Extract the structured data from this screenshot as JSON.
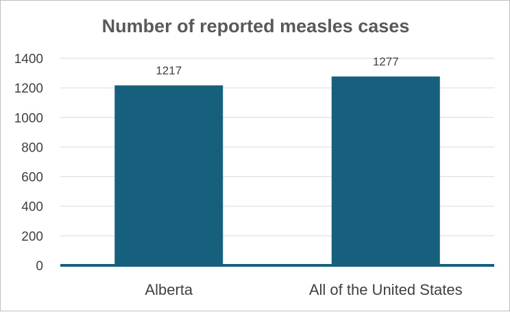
{
  "chart_data": {
    "type": "bar",
    "title": "Number of reported measles cases",
    "categories": [
      "Alberta",
      "All of the United States"
    ],
    "values": [
      1217,
      1277
    ],
    "data_labels": [
      "1217",
      "1277"
    ],
    "ylim": [
      0,
      1400
    ],
    "y_ticks": [
      0,
      200,
      400,
      600,
      800,
      1000,
      1200,
      1400
    ],
    "y_tick_labels": [
      "0",
      "200",
      "400",
      "600",
      "800",
      "1000",
      "1200",
      "1400"
    ],
    "xlabel": "",
    "ylabel": "",
    "grid": true,
    "legend": "none",
    "bar_color": "#17607d",
    "gridline_color": "#d9d9d9",
    "axis_color": "#17607d"
  }
}
